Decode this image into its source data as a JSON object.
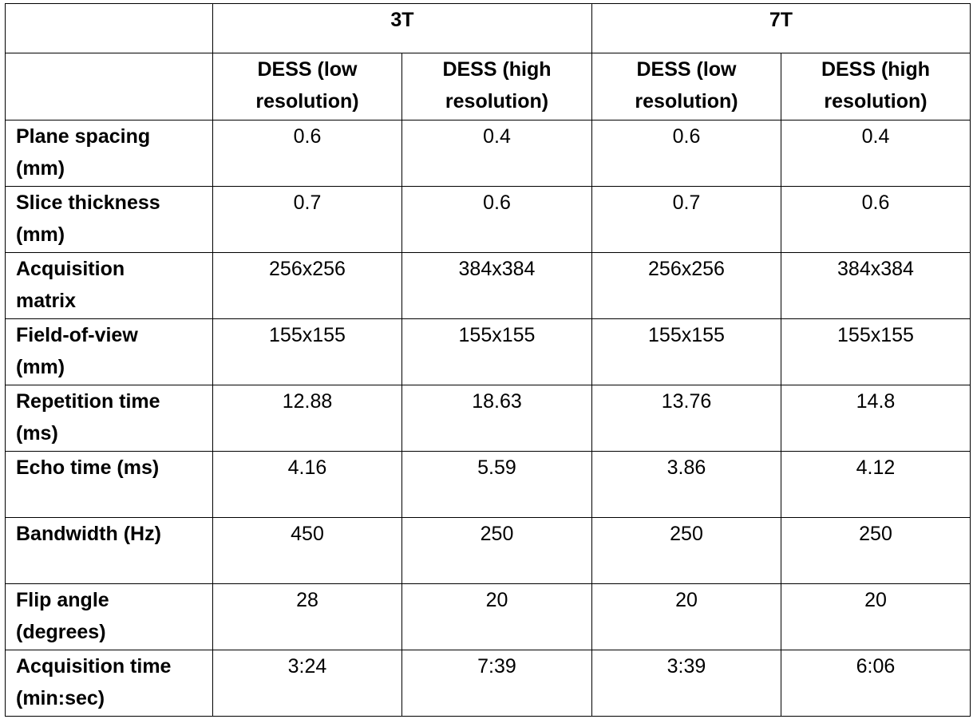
{
  "table": {
    "groups": [
      "3T",
      "7T"
    ],
    "columns": [
      "DESS (low resolution)",
      "DESS (high resolution)",
      "DESS (low resolution)",
      "DESS (high resolution)"
    ],
    "rows": [
      [
        "Plane spacing (mm)",
        "0.6",
        "0.4",
        "0.6",
        "0.4"
      ],
      [
        "Slice thickness (mm)",
        "0.7",
        "0.6",
        "0.7",
        "0.6"
      ],
      [
        "Acquisition matrix",
        "256x256",
        "384x384",
        "256x256",
        "384x384"
      ],
      [
        "Field-of-view (mm)",
        "155x155",
        "155x155",
        "155x155",
        "155x155"
      ],
      [
        "Repetition time (ms)",
        "12.88",
        "18.63",
        "13.76",
        "14.8"
      ],
      [
        "Echo time (ms)",
        "4.16",
        "5.59",
        "3.86",
        "4.12"
      ],
      [
        "Bandwidth (Hz)",
        "450",
        "250",
        "250",
        "250"
      ],
      [
        "Flip angle (degrees)",
        "28",
        "20",
        "20",
        "20"
      ],
      [
        "Acquisition time (min:sec)",
        "3:24",
        "7:39",
        "3:39",
        "6:06"
      ]
    ]
  }
}
